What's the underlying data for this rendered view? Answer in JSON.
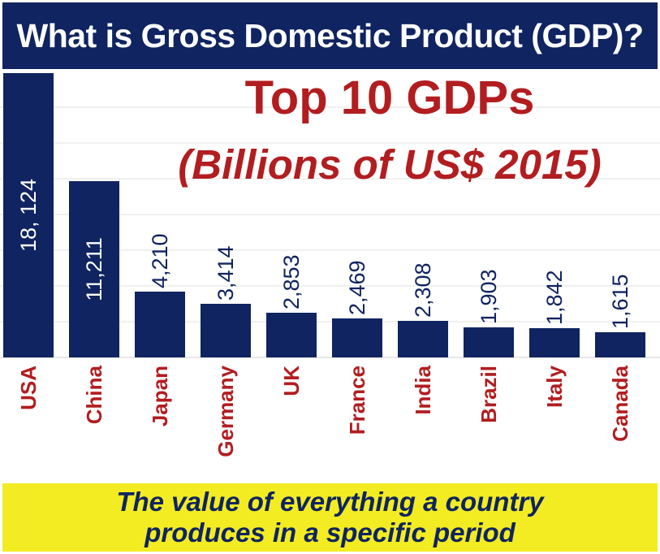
{
  "header": {
    "title": "What is Gross Domestic Product (GDP)?"
  },
  "chart_data": {
    "type": "bar",
    "title": "Top 10 GDPs",
    "subtitle": "(Billions of US$ 2015)",
    "categories": [
      "USA",
      "China",
      "Japan",
      "Germany",
      "UK",
      "France",
      "India",
      "Brazil",
      "Italy",
      "Canada"
    ],
    "values": [
      18124,
      11211,
      4210,
      3414,
      2853,
      2469,
      2308,
      1903,
      1842,
      1615
    ],
    "value_labels": [
      "18, 124",
      "11,211",
      "4,210",
      "3,414",
      "2,853",
      "2,469",
      "2,308",
      "1,903",
      "1,842",
      "1,615"
    ],
    "ylim": [
      0,
      18124
    ],
    "grid": true,
    "bar_color": "#0f2460",
    "label_color": "#b21d20"
  },
  "footer": {
    "line1": "The value of everything a country",
    "line2": "produces in a specific period"
  }
}
